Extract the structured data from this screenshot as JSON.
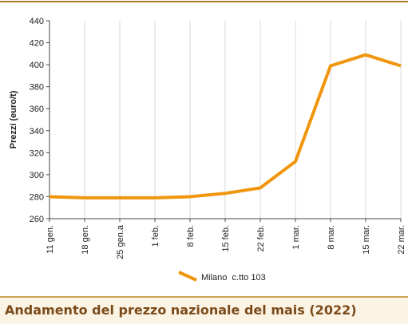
{
  "chart_data": {
    "type": "line",
    "title": "Andamento del prezzo nazionale del mais (2022)",
    "y_label": "Prezzi (euro/t)",
    "categories": [
      "11 gen.",
      "18 gen.",
      "25 gen.a",
      "1 feb.",
      "8 feb.",
      "15 feb.",
      "22 feb.",
      "1 mar.",
      "8 mar.",
      "15 mar.",
      "22 mar."
    ],
    "series": [
      {
        "name": "Milano  c.tto 103",
        "color": "#f0960e",
        "values": [
          280,
          279,
          279,
          279,
          280,
          283,
          288,
          312,
          399,
          409,
          399
        ]
      }
    ],
    "ylim": [
      260,
      440
    ],
    "yticks": [
      260,
      280,
      300,
      320,
      340,
      360,
      380,
      400,
      420,
      440
    ],
    "grid": true
  }
}
